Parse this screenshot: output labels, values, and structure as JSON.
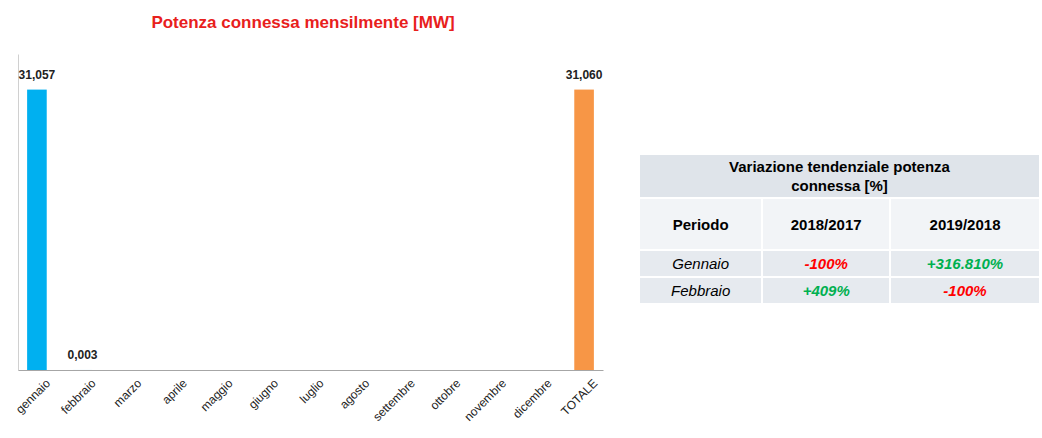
{
  "chart_data": {
    "type": "bar",
    "title": "Potenza connessa mensilmente [MW]",
    "categories": [
      "gennaio",
      "febbraio",
      "marzo",
      "aprile",
      "maggio",
      "giugno",
      "luglio",
      "agosto",
      "settembre",
      "ottobre",
      "novembre",
      "dicembre",
      "TOTALE"
    ],
    "values": [
      31.057,
      0.003,
      null,
      null,
      null,
      null,
      null,
      null,
      null,
      null,
      null,
      null,
      31.06
    ],
    "value_labels": [
      "31,057",
      "0,003",
      null,
      null,
      null,
      null,
      null,
      null,
      null,
      null,
      null,
      null,
      "31,060"
    ],
    "colors": [
      "#00b0f0",
      "#00b0f0",
      "#00b0f0",
      "#00b0f0",
      "#00b0f0",
      "#00b0f0",
      "#00b0f0",
      "#00b0f0",
      "#00b0f0",
      "#00b0f0",
      "#00b0f0",
      "#00b0f0",
      "#f79646"
    ],
    "ylim": [
      0,
      35
    ],
    "yticks": [],
    "grid": false,
    "data_labels": true,
    "tick_labels": "x"
  },
  "table": {
    "title_lines": [
      "Variazione tendenziale potenza",
      "connessa [%]"
    ],
    "header": [
      "Periodo",
      "2018/2017",
      "2019/2018"
    ],
    "rows": [
      [
        "Gennaio",
        "-100%",
        "+316.810%"
      ],
      [
        "Febbraio",
        "+409%",
        "-100%"
      ]
    ]
  }
}
